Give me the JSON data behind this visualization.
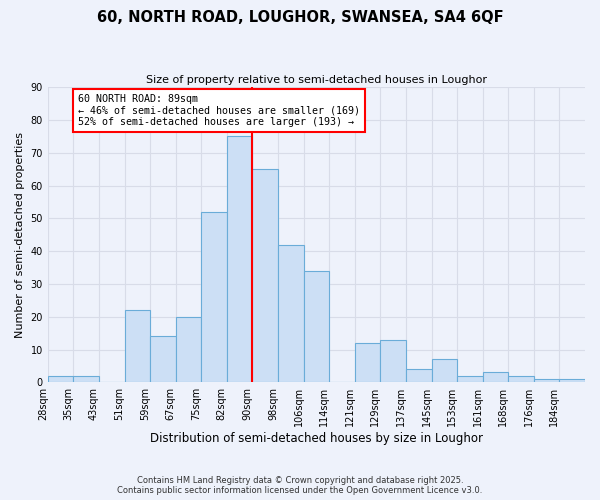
{
  "title": "60, NORTH ROAD, LOUGHOR, SWANSEA, SA4 6QF",
  "subtitle": "Size of property relative to semi-detached houses in Loughor",
  "xlabel": "Distribution of semi-detached houses by size in Loughor",
  "ylabel": "Number of semi-detached properties",
  "bin_labels": [
    "28sqm",
    "35sqm",
    "43sqm",
    "51sqm",
    "59sqm",
    "67sqm",
    "75sqm",
    "82sqm",
    "90sqm",
    "98sqm",
    "106sqm",
    "114sqm",
    "121sqm",
    "129sqm",
    "137sqm",
    "145sqm",
    "153sqm",
    "161sqm",
    "168sqm",
    "176sqm",
    "184sqm"
  ],
  "bar_values": [
    2,
    2,
    0,
    22,
    14,
    20,
    52,
    75,
    65,
    42,
    34,
    0,
    12,
    13,
    4,
    7,
    2,
    3,
    2,
    1,
    1
  ],
  "bar_color": "#ccdff5",
  "bar_edge_color": "#6aacd8",
  "vline_x": 8,
  "vline_color": "red",
  "annotation_title": "60 NORTH ROAD: 89sqm",
  "annotation_line1": "← 46% of semi-detached houses are smaller (169)",
  "annotation_line2": "52% of semi-detached houses are larger (193) →",
  "ylim": [
    0,
    90
  ],
  "yticks": [
    0,
    10,
    20,
    30,
    40,
    50,
    60,
    70,
    80,
    90
  ],
  "background_color": "#eef2fb",
  "grid_color": "#d8dce8",
  "footer_line1": "Contains HM Land Registry data © Crown copyright and database right 2025.",
  "footer_line2": "Contains public sector information licensed under the Open Government Licence v3.0.",
  "num_bins": 21
}
